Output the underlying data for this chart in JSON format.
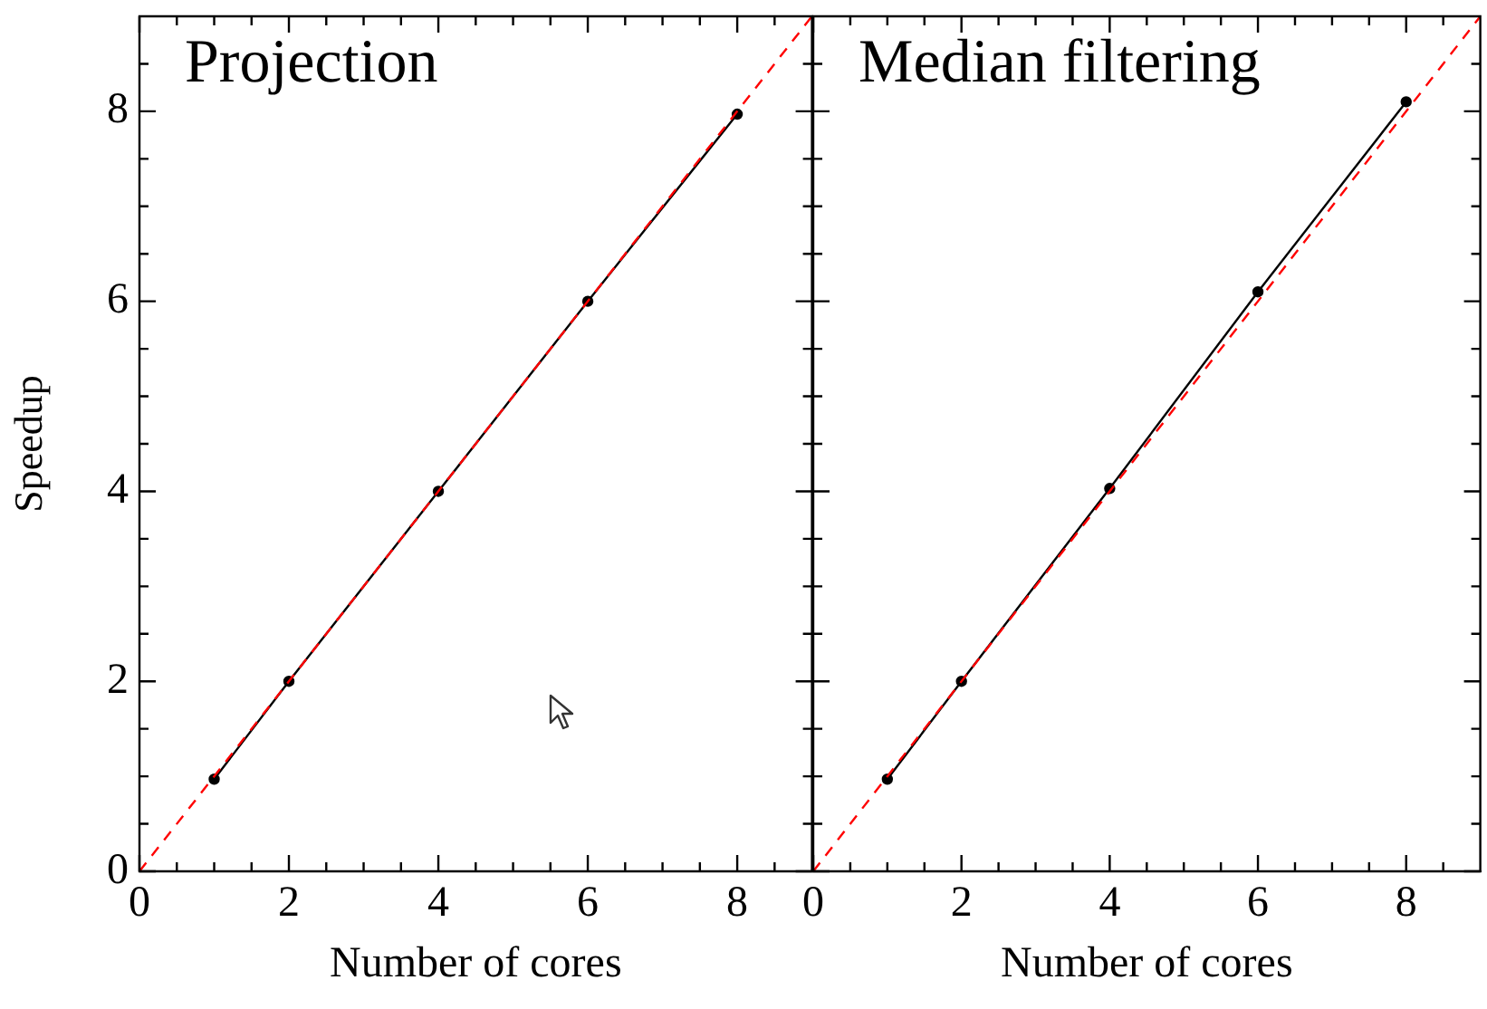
{
  "chart_data": [
    {
      "type": "line",
      "title": "Projection",
      "xlabel": "Number of cores",
      "ylabel": "Speedup",
      "xlim": [
        0,
        9
      ],
      "ylim": [
        0,
        9
      ],
      "xticks": [
        0,
        {
          "value": 0.5,
          "label": null
        },
        {
          "value": 1,
          "label": null
        },
        {
          "value": 1.5,
          "label": null
        },
        2,
        {
          "value": 2.5,
          "label": null
        },
        {
          "value": 3,
          "label": null
        },
        {
          "value": 3.5,
          "label": null
        },
        4,
        {
          "value": 4.5,
          "label": null
        },
        {
          "value": 5,
          "label": null
        },
        {
          "value": 5.5,
          "label": null
        },
        6,
        {
          "value": 6.5,
          "label": null
        },
        {
          "value": 7,
          "label": null
        },
        {
          "value": 7.5,
          "label": null
        },
        8,
        {
          "value": 8.5,
          "label": null
        }
      ],
      "yticks": [
        0,
        {
          "value": 0.5,
          "label": null
        },
        {
          "value": 1,
          "label": null
        },
        {
          "value": 1.5,
          "label": null
        },
        2,
        {
          "value": 2.5,
          "label": null
        },
        {
          "value": 3,
          "label": null
        },
        {
          "value": 3.5,
          "label": null
        },
        4,
        {
          "value": 4.5,
          "label": null
        },
        {
          "value": 5,
          "label": null
        },
        {
          "value": 5.5,
          "label": null
        },
        6,
        {
          "value": 6.5,
          "label": null
        },
        {
          "value": 7,
          "label": null
        },
        {
          "value": 7.5,
          "label": null
        },
        8,
        {
          "value": 8.5,
          "label": null
        }
      ],
      "grid": false,
      "series": [
        {
          "type": "line",
          "color": "#ff0000",
          "x": [
            0,
            9
          ],
          "values": [
            0,
            9
          ],
          "line_style": "dashed",
          "marker": "none"
        },
        {
          "type": "line",
          "color": "#000000",
          "x": [
            1,
            2,
            4,
            6,
            8
          ],
          "values": [
            0.97,
            2,
            4,
            6,
            7.97
          ],
          "line_style": "solid",
          "marker": "circle"
        }
      ]
    },
    {
      "type": "line",
      "title": "Median filtering",
      "xlabel": "Number of cores",
      "xlim": [
        0,
        9
      ],
      "ylim": [
        0,
        9
      ],
      "tick_labels": "x",
      "xticks": [
        0,
        {
          "value": 0.5,
          "label": null
        },
        {
          "value": 1,
          "label": null
        },
        {
          "value": 1.5,
          "label": null
        },
        2,
        {
          "value": 2.5,
          "label": null
        },
        {
          "value": 3,
          "label": null
        },
        {
          "value": 3.5,
          "label": null
        },
        4,
        {
          "value": 4.5,
          "label": null
        },
        {
          "value": 5,
          "label": null
        },
        {
          "value": 5.5,
          "label": null
        },
        6,
        {
          "value": 6.5,
          "label": null
        },
        {
          "value": 7,
          "label": null
        },
        {
          "value": 7.5,
          "label": null
        },
        8,
        {
          "value": 8.5,
          "label": null
        }
      ],
      "yticks": [
        0,
        {
          "value": 0.5,
          "label": null
        },
        {
          "value": 1,
          "label": null
        },
        {
          "value": 1.5,
          "label": null
        },
        2,
        {
          "value": 2.5,
          "label": null
        },
        {
          "value": 3,
          "label": null
        },
        {
          "value": 3.5,
          "label": null
        },
        4,
        {
          "value": 4.5,
          "label": null
        },
        {
          "value": 5,
          "label": null
        },
        {
          "value": 5.5,
          "label": null
        },
        6,
        {
          "value": 6.5,
          "label": null
        },
        {
          "value": 7,
          "label": null
        },
        {
          "value": 7.5,
          "label": null
        },
        8,
        {
          "value": 8.5,
          "label": null
        }
      ],
      "grid": false,
      "series": [
        {
          "type": "line",
          "color": "#ff0000",
          "x": [
            0,
            9
          ],
          "values": [
            0,
            9
          ],
          "line_style": "dashed",
          "marker": "none"
        },
        {
          "type": "line",
          "color": "#000000",
          "x": [
            1,
            2,
            4,
            6,
            8
          ],
          "values": [
            0.97,
            2,
            4.03,
            6.1,
            8.1
          ],
          "line_style": "solid",
          "marker": "circle"
        }
      ]
    }
  ]
}
